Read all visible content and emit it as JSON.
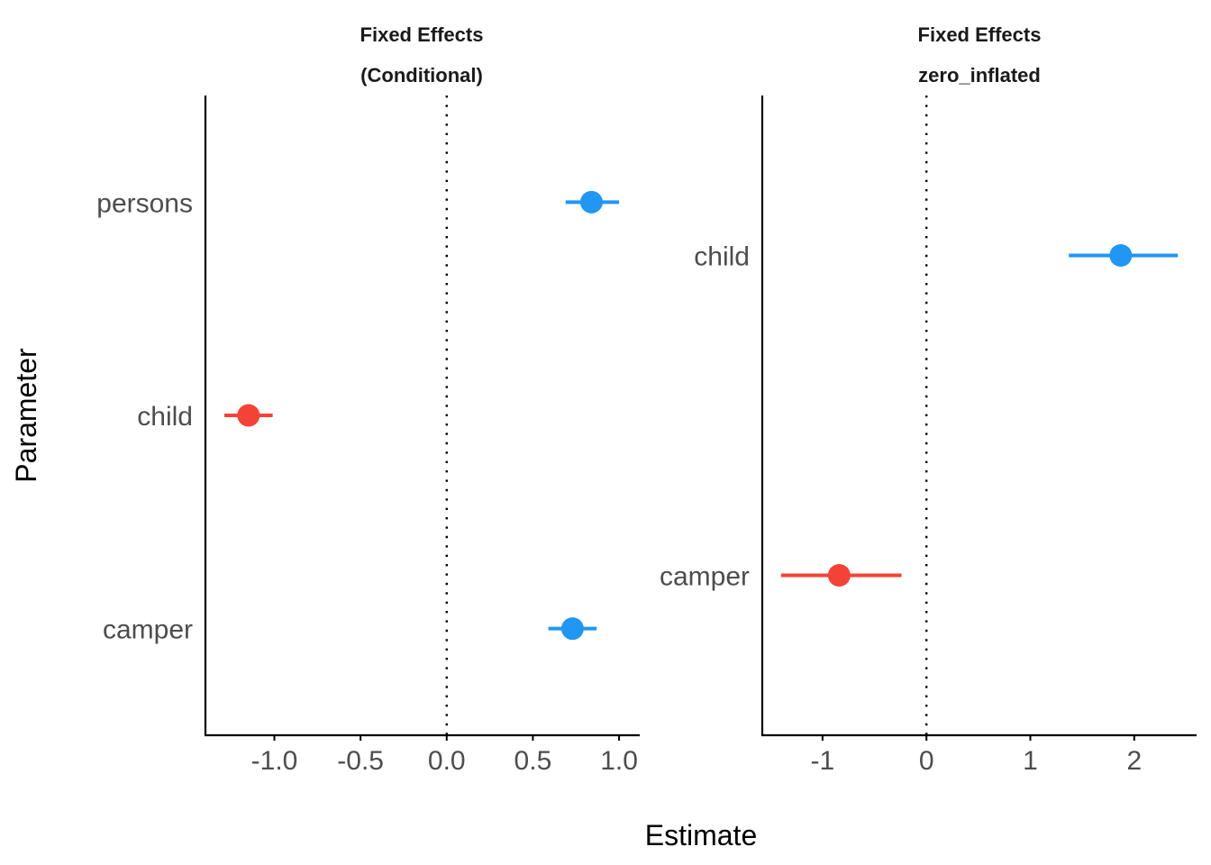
{
  "chart_data": [
    {
      "type": "forest",
      "title_lines": [
        "Fixed Effects",
        "(Conditional)"
      ],
      "categories": [
        "persons",
        "child",
        "camper"
      ],
      "points": [
        {
          "parameter": "persons",
          "estimate": 0.84,
          "ci_low": 0.69,
          "ci_high": 1.0,
          "direction": "positive"
        },
        {
          "parameter": "child",
          "estimate": -1.15,
          "ci_low": -1.29,
          "ci_high": -1.01,
          "direction": "negative"
        },
        {
          "parameter": "camper",
          "estimate": 0.73,
          "ci_low": 0.59,
          "ci_high": 0.87,
          "direction": "positive"
        }
      ],
      "xlim": [
        -1.4,
        1.12
      ],
      "xticks": [
        -1.0,
        -0.5,
        0.0,
        0.5,
        1.0
      ],
      "xtick_labels": [
        "-1.0",
        "-0.5",
        "0.0",
        "0.5",
        "1.0"
      ],
      "reference_line": 0
    },
    {
      "type": "forest",
      "title_lines": [
        "Fixed Effects",
        "zero_inflated"
      ],
      "categories": [
        "child",
        "camper"
      ],
      "points": [
        {
          "parameter": "child",
          "estimate": 1.87,
          "ci_low": 1.37,
          "ci_high": 2.42,
          "direction": "positive"
        },
        {
          "parameter": "camper",
          "estimate": -0.84,
          "ci_low": -1.4,
          "ci_high": -0.24,
          "direction": "negative"
        }
      ],
      "xlim": [
        -1.58,
        2.6
      ],
      "xticks": [
        -1,
        0,
        1,
        2
      ],
      "xtick_labels": [
        "-1",
        "0",
        "1",
        "2"
      ],
      "reference_line": 0
    }
  ],
  "xlabel": "Estimate",
  "ylabel": "Parameter",
  "colors": {
    "positive": "#2196F3",
    "negative": "#F44336",
    "axis": "#000000"
  }
}
